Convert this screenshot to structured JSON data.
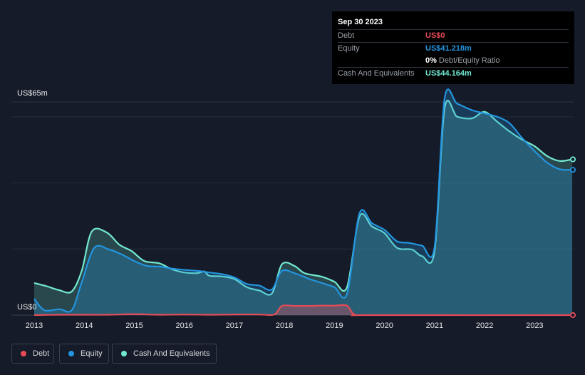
{
  "tooltip": {
    "date": "Sep 30 2023",
    "debt_label": "Debt",
    "debt_value": "US$0",
    "equity_label": "Equity",
    "equity_value": "US$41.218m",
    "ratio_percent": "0%",
    "ratio_label": "Debt/Equity Ratio",
    "cash_label": "Cash And Equivalents",
    "cash_value": "US$44.164m"
  },
  "legend": {
    "debt": "Debt",
    "equity": "Equity",
    "cash": "Cash And Equivalents"
  },
  "colors": {
    "background": "#151b28",
    "debt": "#e64b57",
    "equity": "#2394df",
    "cash": "#72e8d2"
  },
  "chart_data": {
    "type": "area",
    "ylabel_top": "US$65m",
    "ylabel_bottom": "US$0",
    "ylim": [
      0,
      65
    ],
    "xlim": [
      2013.0,
      2023.75
    ],
    "x_ticks": [
      "2013",
      "2014",
      "2015",
      "2016",
      "2017",
      "2018",
      "2019",
      "2020",
      "2021",
      "2022",
      "2023"
    ],
    "series": [
      {
        "name": "Cash And Equivalents",
        "points": [
          [
            2013.0,
            9.8
          ],
          [
            2013.25,
            8.8
          ],
          [
            2013.5,
            7.6
          ],
          [
            2013.75,
            7.2
          ],
          [
            2013.95,
            13.5
          ],
          [
            2014.15,
            25.5
          ],
          [
            2014.45,
            25.2
          ],
          [
            2014.7,
            21.5
          ],
          [
            2014.95,
            19.5
          ],
          [
            2015.2,
            16.5
          ],
          [
            2015.5,
            15.8
          ],
          [
            2015.75,
            14.0
          ],
          [
            2016.0,
            13.0
          ],
          [
            2016.25,
            12.8
          ],
          [
            2016.4,
            13.3
          ],
          [
            2016.5,
            12.0
          ],
          [
            2016.75,
            11.8
          ],
          [
            2017.0,
            11.0
          ],
          [
            2017.25,
            8.5
          ],
          [
            2017.5,
            7.5
          ],
          [
            2017.75,
            6.6
          ],
          [
            2017.95,
            15.5
          ],
          [
            2018.2,
            15.0
          ],
          [
            2018.4,
            12.8
          ],
          [
            2018.75,
            11.7
          ],
          [
            2019.0,
            10.2
          ],
          [
            2019.25,
            8.5
          ],
          [
            2019.5,
            30.0
          ],
          [
            2019.75,
            27.0
          ],
          [
            2020.0,
            25.0
          ],
          [
            2020.25,
            20.5
          ],
          [
            2020.55,
            20.0
          ],
          [
            2020.75,
            18.0
          ],
          [
            2021.0,
            19.5
          ],
          [
            2021.2,
            63.0
          ],
          [
            2021.45,
            60.5
          ],
          [
            2021.75,
            60.0
          ],
          [
            2022.0,
            62.0
          ],
          [
            2022.25,
            59.0
          ],
          [
            2022.5,
            56.0
          ],
          [
            2022.75,
            53.5
          ],
          [
            2023.0,
            51.5
          ],
          [
            2023.25,
            48.5
          ],
          [
            2023.5,
            47.0
          ],
          [
            2023.75,
            47.5
          ]
        ]
      },
      {
        "name": "Equity",
        "points": [
          [
            2013.0,
            5.0
          ],
          [
            2013.2,
            1.5
          ],
          [
            2013.5,
            1.8
          ],
          [
            2013.75,
            1.5
          ],
          [
            2013.95,
            10.0
          ],
          [
            2014.2,
            20.5
          ],
          [
            2014.5,
            20.0
          ],
          [
            2014.75,
            18.5
          ],
          [
            2015.0,
            16.5
          ],
          [
            2015.25,
            15.0
          ],
          [
            2015.5,
            14.8
          ],
          [
            2015.75,
            14.2
          ],
          [
            2016.0,
            13.8
          ],
          [
            2016.25,
            13.5
          ],
          [
            2016.5,
            13.0
          ],
          [
            2016.75,
            12.5
          ],
          [
            2017.0,
            11.5
          ],
          [
            2017.25,
            9.5
          ],
          [
            2017.5,
            9.0
          ],
          [
            2017.75,
            7.8
          ],
          [
            2017.95,
            13.5
          ],
          [
            2018.25,
            12.5
          ],
          [
            2018.5,
            11.0
          ],
          [
            2018.75,
            9.8
          ],
          [
            2019.0,
            8.5
          ],
          [
            2019.25,
            6.5
          ],
          [
            2019.5,
            31.0
          ],
          [
            2019.75,
            28.0
          ],
          [
            2020.0,
            26.0
          ],
          [
            2020.25,
            22.5
          ],
          [
            2020.5,
            22.0
          ],
          [
            2020.75,
            21.2
          ],
          [
            2021.0,
            20.8
          ],
          [
            2021.2,
            66.0
          ],
          [
            2021.45,
            64.5
          ],
          [
            2021.75,
            62.5
          ],
          [
            2022.0,
            61.5
          ],
          [
            2022.25,
            60.5
          ],
          [
            2022.5,
            58.5
          ],
          [
            2022.75,
            54.0
          ],
          [
            2023.0,
            50.0
          ],
          [
            2023.25,
            46.5
          ],
          [
            2023.5,
            44.5
          ],
          [
            2023.75,
            44.3
          ]
        ]
      },
      {
        "name": "Debt",
        "points": [
          [
            2013.0,
            0.0
          ],
          [
            2013.5,
            0.1
          ],
          [
            2014.0,
            0.1
          ],
          [
            2014.5,
            0.1
          ],
          [
            2015.0,
            0.3
          ],
          [
            2015.5,
            0.1
          ],
          [
            2016.0,
            0.2
          ],
          [
            2016.5,
            0.1
          ],
          [
            2017.0,
            0.2
          ],
          [
            2017.5,
            0.2
          ],
          [
            2017.8,
            0.2
          ],
          [
            2017.95,
            2.8
          ],
          [
            2018.2,
            2.8
          ],
          [
            2018.5,
            2.8
          ],
          [
            2018.75,
            2.9
          ],
          [
            2019.0,
            2.9
          ],
          [
            2019.25,
            2.9
          ],
          [
            2019.4,
            0.2
          ],
          [
            2019.75,
            0.0
          ],
          [
            2023.75,
            0.0
          ]
        ]
      }
    ]
  }
}
